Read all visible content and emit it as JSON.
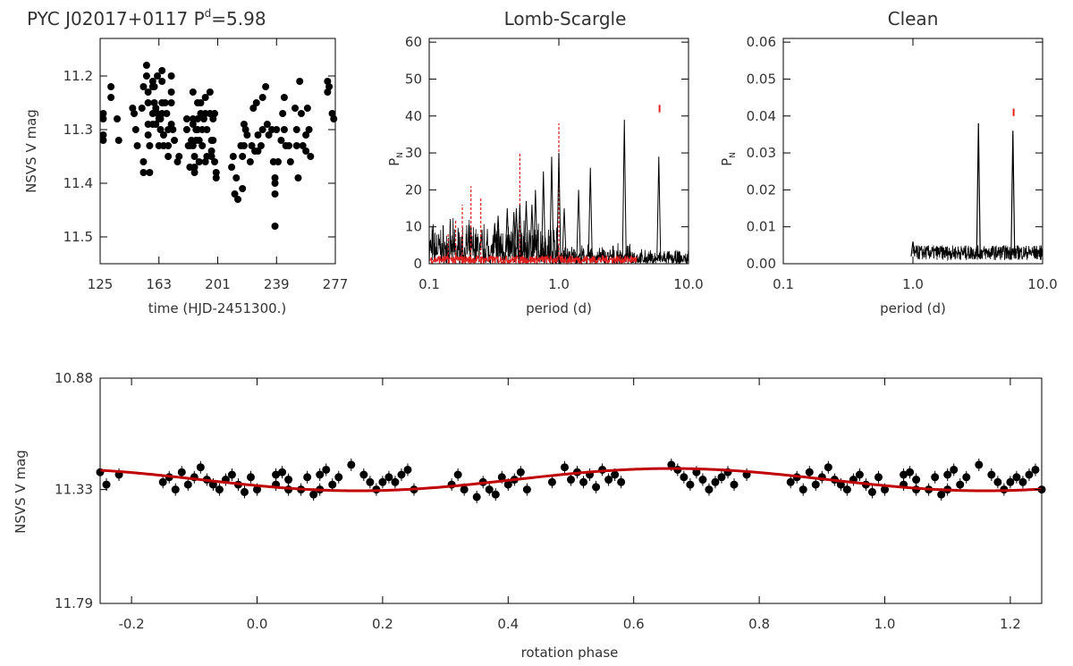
{
  "chart_data": [
    {
      "id": "lightcurve",
      "type": "scatter",
      "title": "PYC J02017+0117 P",
      "title_superscript": "d",
      "title_suffix": "=5.98",
      "xlabel": "time (HJD-2451300.)",
      "ylabel": "NSVS V mag",
      "xlim": [
        125,
        277
      ],
      "ylim": [
        11.55,
        11.13
      ],
      "xticks": [
        "125",
        "163",
        "201",
        "239",
        "277"
      ],
      "yticks": [
        "11.2",
        "11.3",
        "11.4",
        "11.5"
      ],
      "points": [
        [
          127,
          11.27
        ],
        [
          127,
          11.28
        ],
        [
          127,
          11.31
        ],
        [
          127,
          11.32
        ],
        [
          132,
          11.22
        ],
        [
          132,
          11.24
        ],
        [
          136,
          11.28
        ],
        [
          137,
          11.32
        ],
        [
          146,
          11.26
        ],
        [
          147,
          11.27
        ],
        [
          148,
          11.3
        ],
        [
          149,
          11.33
        ],
        [
          152,
          11.26
        ],
        [
          153,
          11.22
        ],
        [
          153,
          11.36
        ],
        [
          153,
          11.38
        ],
        [
          155,
          11.18
        ],
        [
          155,
          11.2
        ],
        [
          156,
          11.23
        ],
        [
          156,
          11.25
        ],
        [
          156,
          11.29
        ],
        [
          156,
          11.31
        ],
        [
          157,
          11.33
        ],
        [
          157,
          11.38
        ],
        [
          159,
          11.21
        ],
        [
          159,
          11.22
        ],
        [
          159,
          11.27
        ],
        [
          159,
          11.29
        ],
        [
          160,
          11.22
        ],
        [
          160,
          11.25
        ],
        [
          161,
          11.26
        ],
        [
          161,
          11.29
        ],
        [
          162,
          11.2
        ],
        [
          162,
          11.27
        ],
        [
          163,
          11.28
        ],
        [
          163,
          11.33
        ],
        [
          164,
          11.28
        ],
        [
          164,
          11.3
        ],
        [
          165,
          11.19
        ],
        [
          165,
          11.21
        ],
        [
          165,
          11.25
        ],
        [
          165,
          11.27
        ],
        [
          166,
          11.31
        ],
        [
          166,
          11.33
        ],
        [
          167,
          11.25
        ],
        [
          168,
          11.27
        ],
        [
          169,
          11.3
        ],
        [
          169,
          11.33
        ],
        [
          169,
          11.35
        ],
        [
          171,
          11.2
        ],
        [
          171,
          11.23
        ],
        [
          171,
          11.25
        ],
        [
          171,
          11.29
        ],
        [
          172,
          11.3
        ],
        [
          173,
          11.32
        ],
        [
          175,
          11.36
        ],
        [
          176,
          11.35
        ],
        [
          181,
          11.28
        ],
        [
          181,
          11.3
        ],
        [
          182,
          11.33
        ],
        [
          183,
          11.33
        ],
        [
          183,
          11.37
        ],
        [
          184,
          11.32
        ],
        [
          185,
          11.23
        ],
        [
          185,
          11.28
        ],
        [
          185,
          11.29
        ],
        [
          185,
          11.33
        ],
        [
          186,
          11.35
        ],
        [
          186,
          11.37
        ],
        [
          186,
          11.38
        ],
        [
          187,
          11.3
        ],
        [
          187,
          11.32
        ],
        [
          188,
          11.25
        ],
        [
          188,
          11.28
        ],
        [
          188,
          11.3
        ],
        [
          189,
          11.32
        ],
        [
          189,
          11.36
        ],
        [
          190,
          11.25
        ],
        [
          190,
          11.27
        ],
        [
          191,
          11.3
        ],
        [
          191,
          11.33
        ],
        [
          192,
          11.28
        ],
        [
          193,
          11.24
        ],
        [
          193,
          11.27
        ],
        [
          193,
          11.36
        ],
        [
          194,
          11.3
        ],
        [
          194,
          11.35
        ],
        [
          196,
          11.23
        ],
        [
          196,
          11.27
        ],
        [
          197,
          11.32
        ],
        [
          197,
          11.34
        ],
        [
          197,
          11.35
        ],
        [
          198,
          11.28
        ],
        [
          198,
          11.32
        ],
        [
          199,
          11.27
        ],
        [
          199,
          11.36
        ],
        [
          200,
          11.38
        ],
        [
          200,
          11.39
        ],
        [
          210,
          11.37
        ],
        [
          211,
          11.35
        ],
        [
          212,
          11.42
        ],
        [
          213,
          11.39
        ],
        [
          214,
          11.43
        ],
        [
          216,
          11.33
        ],
        [
          217,
          11.35
        ],
        [
          217,
          11.41
        ],
        [
          218,
          11.29
        ],
        [
          218,
          11.33
        ],
        [
          219,
          11.3
        ],
        [
          220,
          11.31
        ],
        [
          222,
          11.36
        ],
        [
          223,
          11.33
        ],
        [
          224,
          11.26
        ],
        [
          225,
          11.34
        ],
        [
          226,
          11.25
        ],
        [
          227,
          11.31
        ],
        [
          227,
          11.34
        ],
        [
          229,
          11.33
        ],
        [
          230,
          11.24
        ],
        [
          230,
          11.3
        ],
        [
          232,
          11.22
        ],
        [
          233,
          11.29
        ],
        [
          234,
          11.31
        ],
        [
          236,
          11.3
        ],
        [
          237,
          11.36
        ],
        [
          238,
          11.39
        ],
        [
          238,
          11.4
        ],
        [
          238,
          11.42
        ],
        [
          238,
          11.48
        ],
        [
          239,
          11.3
        ],
        [
          240,
          11.36
        ],
        [
          242,
          11.32
        ],
        [
          243,
          11.27
        ],
        [
          244,
          11.24
        ],
        [
          244,
          11.3
        ],
        [
          245,
          11.33
        ],
        [
          247,
          11.33
        ],
        [
          248,
          11.36
        ],
        [
          251,
          11.26
        ],
        [
          252,
          11.3
        ],
        [
          252,
          11.33
        ],
        [
          253,
          11.39
        ],
        [
          254,
          11.21
        ],
        [
          255,
          11.27
        ],
        [
          256,
          11.33
        ],
        [
          258,
          11.31
        ],
        [
          258,
          11.34
        ],
        [
          259,
          11.26
        ],
        [
          260,
          11.3
        ],
        [
          261,
          11.35
        ],
        [
          272,
          11.21
        ],
        [
          272,
          11.23
        ],
        [
          273,
          11.22
        ],
        [
          275,
          11.27
        ],
        [
          276,
          11.28
        ]
      ]
    },
    {
      "id": "lombscargle",
      "type": "line",
      "title": "Lomb-Scargle",
      "xlabel": "period (d)",
      "ylabel": "P",
      "ylabel_subscript": "N",
      "xscale": "log",
      "xlim": [
        0.1,
        10.0
      ],
      "ylim": [
        0,
        61
      ],
      "xticks": [
        "0.1",
        "1.0",
        "10.0"
      ],
      "yticks": [
        "0",
        "10",
        "20",
        "30",
        "40",
        "50",
        "60"
      ],
      "peaks": [
        [
          0.32,
          11
        ],
        [
          0.34,
          13
        ],
        [
          0.4,
          15
        ],
        [
          0.45,
          14
        ],
        [
          0.47,
          15
        ],
        [
          0.5,
          16
        ],
        [
          0.56,
          17
        ],
        [
          0.62,
          16
        ],
        [
          0.66,
          20
        ],
        [
          0.76,
          25
        ],
        [
          0.88,
          29
        ],
        [
          1.0,
          30
        ],
        [
          1.1,
          15
        ],
        [
          1.42,
          20
        ],
        [
          1.75,
          26
        ],
        [
          3.2,
          39
        ],
        [
          5.9,
          29
        ]
      ],
      "window_peaks": [
        [
          0.14,
          8
        ],
        [
          0.16,
          12
        ],
        [
          0.18,
          16
        ],
        [
          0.21,
          21
        ],
        [
          0.25,
          18
        ],
        [
          0.5,
          30
        ],
        [
          1.0,
          38
        ]
      ],
      "marker_period": 5.98,
      "marker_value": 41
    },
    {
      "id": "clean",
      "type": "line",
      "title": "Clean",
      "xlabel": "period (d)",
      "ylabel": "P",
      "ylabel_subscript": "N",
      "xscale": "log",
      "xlim": [
        0.1,
        10.0
      ],
      "ylim": [
        0,
        0.061
      ],
      "xticks": [
        "0.1",
        "1.0",
        "10.0"
      ],
      "yticks": [
        "0.00",
        "0.01",
        "0.02",
        "0.03",
        "0.04",
        "0.05",
        "0.06"
      ],
      "peaks": [
        [
          1.0,
          0.006
        ],
        [
          3.2,
          0.038
        ],
        [
          5.9,
          0.036
        ]
      ],
      "marker_period": 5.98,
      "marker_value": 0.04
    },
    {
      "id": "phased",
      "type": "scatter",
      "title": "",
      "xlabel": "rotation phase",
      "ylabel": "NSVS V mag",
      "xlim": [
        -0.25,
        1.25
      ],
      "ylim": [
        11.79,
        10.88
      ],
      "xticks": [
        "-0.2",
        "0.0",
        "0.2",
        "0.4",
        "0.6",
        "0.8",
        "1.0",
        "1.2"
      ],
      "yticks": [
        "10.88",
        "11.33",
        "11.79"
      ],
      "fit_mean": 11.29,
      "fit_amplitude": 0.045,
      "fit_peak_phase": 0.66,
      "phased_points": [
        [
          0.03,
          11.27
        ],
        [
          0.03,
          11.31
        ],
        [
          0.04,
          11.26
        ],
        [
          0.05,
          11.33
        ],
        [
          0.05,
          11.29
        ],
        [
          0.07,
          11.33
        ],
        [
          0.08,
          11.28
        ],
        [
          0.09,
          11.35
        ],
        [
          0.1,
          11.27
        ],
        [
          0.1,
          11.33
        ],
        [
          0.11,
          11.25
        ],
        [
          0.12,
          11.31
        ],
        [
          0.13,
          11.28
        ],
        [
          0.15,
          11.23
        ],
        [
          0.17,
          11.27
        ],
        [
          0.18,
          11.3
        ],
        [
          0.19,
          11.33
        ],
        [
          0.2,
          11.3
        ],
        [
          0.21,
          11.28
        ],
        [
          0.22,
          11.3
        ],
        [
          0.23,
          11.27
        ],
        [
          0.24,
          11.25
        ],
        [
          0.25,
          11.33
        ],
        [
          0.31,
          11.31
        ],
        [
          0.32,
          11.27
        ],
        [
          0.33,
          11.33
        ],
        [
          0.35,
          11.36
        ],
        [
          0.36,
          11.3
        ],
        [
          0.37,
          11.33
        ],
        [
          0.38,
          11.35
        ],
        [
          0.39,
          11.28
        ],
        [
          0.4,
          11.31
        ],
        [
          0.41,
          11.29
        ],
        [
          0.42,
          11.26
        ],
        [
          0.43,
          11.33
        ],
        [
          0.47,
          11.3
        ],
        [
          0.49,
          11.24
        ],
        [
          0.5,
          11.29
        ],
        [
          0.51,
          11.26
        ],
        [
          0.52,
          11.3
        ],
        [
          0.53,
          11.27
        ],
        [
          0.54,
          11.32
        ],
        [
          0.55,
          11.25
        ],
        [
          0.56,
          11.29
        ],
        [
          0.57,
          11.27
        ],
        [
          0.58,
          11.3
        ],
        [
          0.66,
          11.23
        ],
        [
          0.67,
          11.25
        ],
        [
          0.68,
          11.28
        ],
        [
          0.69,
          11.31
        ],
        [
          0.7,
          11.26
        ],
        [
          0.71,
          11.29
        ],
        [
          0.72,
          11.33
        ],
        [
          0.73,
          11.3
        ],
        [
          0.74,
          11.28
        ],
        [
          0.75,
          11.26
        ],
        [
          0.76,
          11.31
        ],
        [
          0.78,
          11.27
        ],
        [
          0.85,
          11.3
        ],
        [
          0.86,
          11.28
        ],
        [
          0.87,
          11.33
        ],
        [
          0.88,
          11.26
        ],
        [
          0.89,
          11.31
        ],
        [
          0.9,
          11.28
        ],
        [
          0.91,
          11.24
        ],
        [
          0.92,
          11.29
        ],
        [
          0.93,
          11.31
        ],
        [
          0.94,
          11.33
        ],
        [
          0.95,
          11.29
        ],
        [
          0.96,
          11.27
        ],
        [
          0.97,
          11.31
        ],
        [
          0.98,
          11.34
        ],
        [
          0.99,
          11.28
        ],
        [
          1.0,
          11.33
        ]
      ]
    }
  ],
  "colors": {
    "ink": "#000000",
    "axis": "#333333",
    "fit": "#c00000",
    "window": "#e02020"
  }
}
